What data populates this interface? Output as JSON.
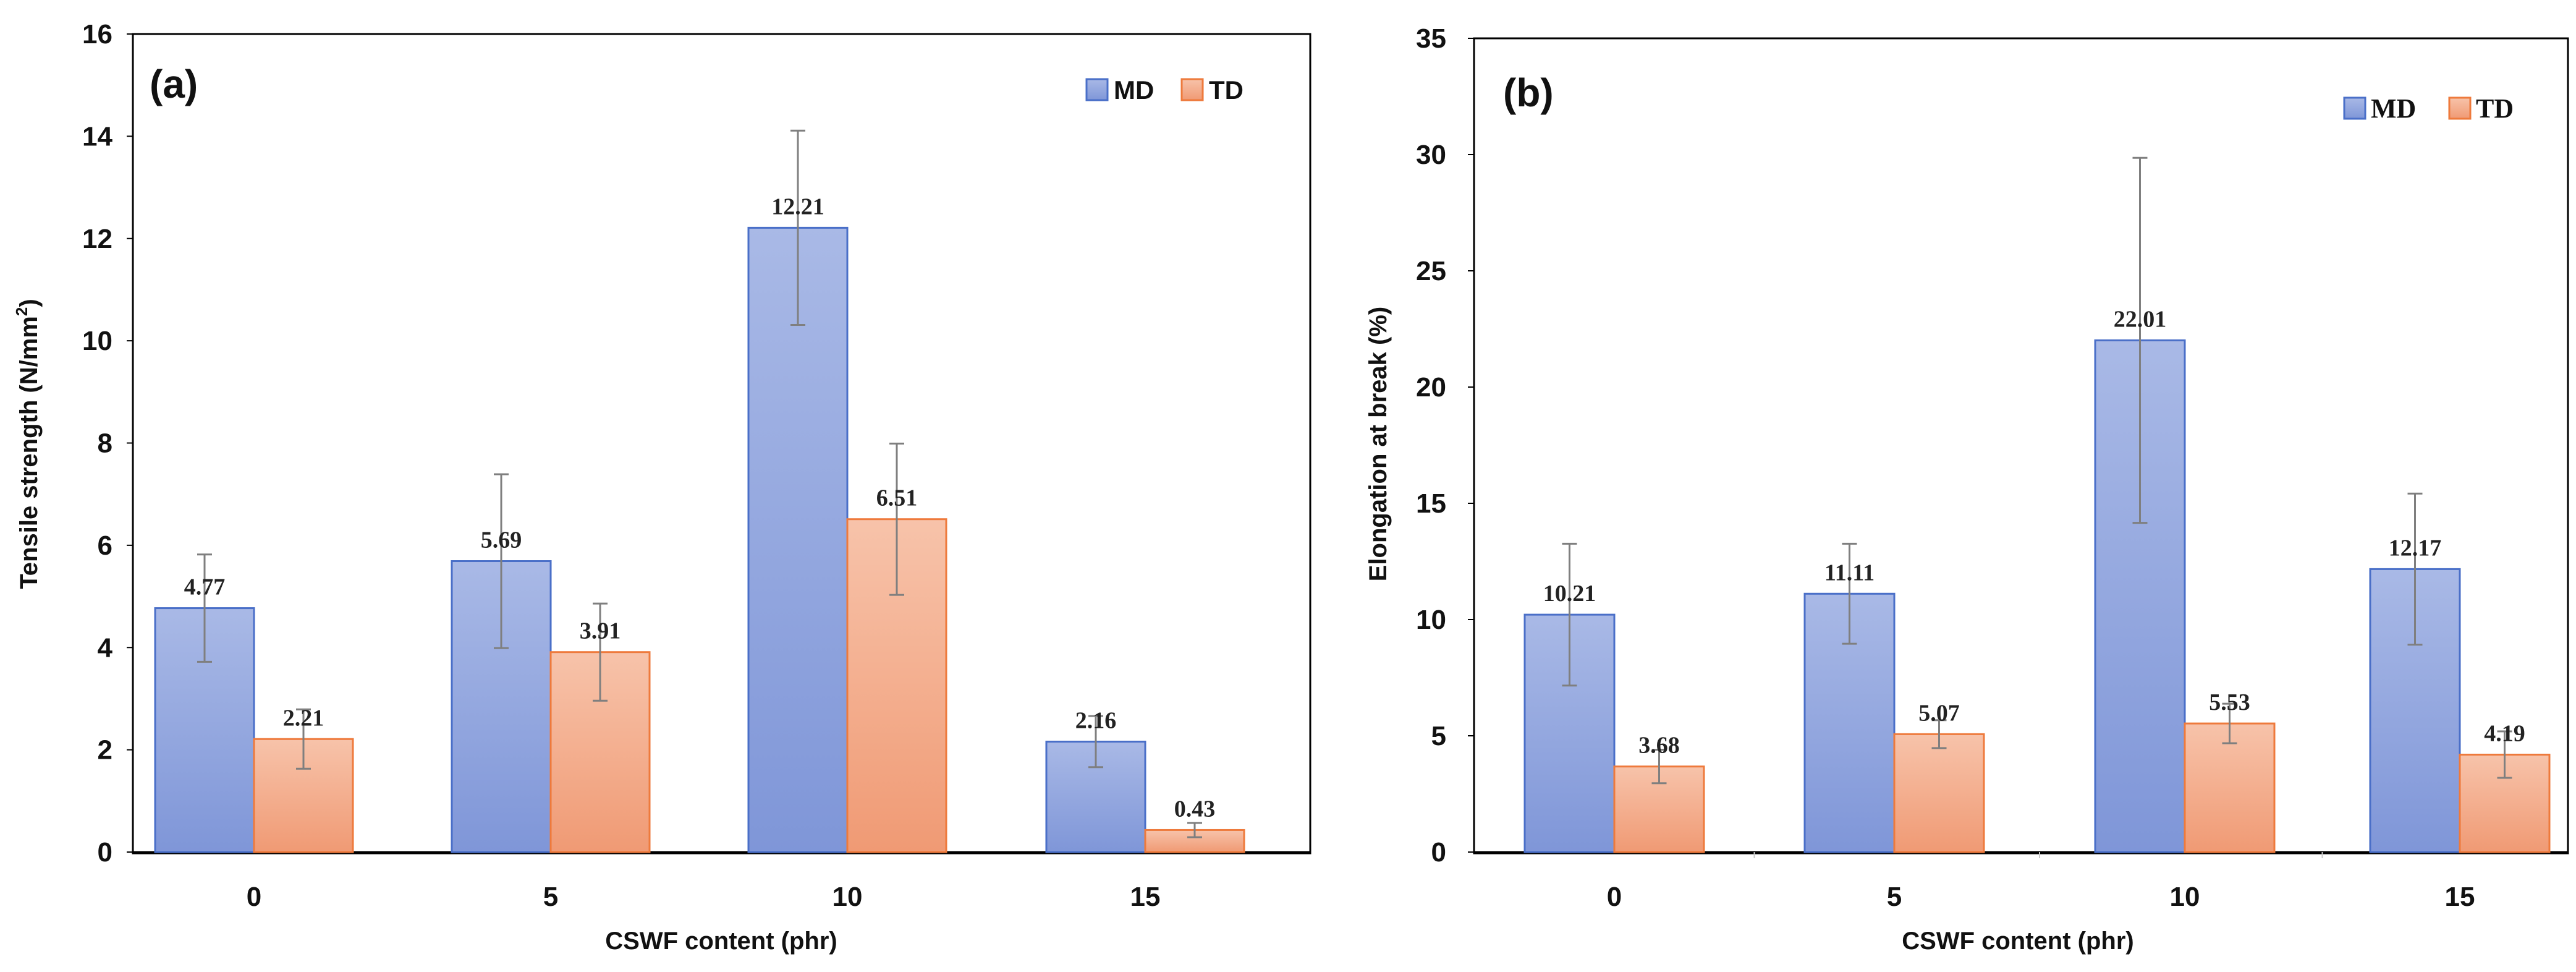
{
  "colors": {
    "md_fill_top": "#a9b9e6",
    "md_fill_bottom": "#7f96d8",
    "md_stroke": "#4a6fc8",
    "td_fill_top": "#f7c3aa",
    "td_fill_bottom": "#f09a74",
    "td_stroke": "#ee7a3c",
    "error_bar": "#7f7f7f",
    "axis": "#000000"
  },
  "chart_data": [
    {
      "type": "bar",
      "panel_label": "(a)",
      "title": "",
      "xlabel": "CSWF content (phr)",
      "ylabel": "Tensile strength (N/mm",
      "ylabel_sup": "2",
      "ylabel_end": ")",
      "categories": [
        "0",
        "5",
        "10",
        "15"
      ],
      "ylim": [
        0,
        16
      ],
      "yticks": [
        "0",
        "2",
        "4",
        "6",
        "8",
        "10",
        "12",
        "14",
        "16"
      ],
      "legend_position": "top-right",
      "series": [
        {
          "name": "MD",
          "values": [
            4.77,
            5.69,
            12.21,
            2.16
          ],
          "value_labels": [
            "4.77",
            "5.69",
            "12.21",
            "2.16"
          ],
          "error": [
            1.05,
            1.7,
            1.9,
            0.5
          ]
        },
        {
          "name": "TD",
          "values": [
            2.21,
            3.91,
            6.51,
            0.43
          ],
          "value_labels": [
            "2.21",
            "3.91",
            "6.51",
            "0.43"
          ],
          "error": [
            0.58,
            0.95,
            1.48,
            0.14
          ]
        }
      ]
    },
    {
      "type": "bar",
      "panel_label": "(b)",
      "title": "",
      "xlabel": "CSWF content (phr)",
      "ylabel": "Elongation at break (%)",
      "categories": [
        "0",
        "5",
        "10",
        "15"
      ],
      "ylim": [
        0,
        35
      ],
      "yticks": [
        "0",
        "5",
        "10",
        "15",
        "20",
        "25",
        "30",
        "35"
      ],
      "legend_position": "top-right",
      "series": [
        {
          "name": "MD",
          "values": [
            10.21,
            11.11,
            22.01,
            12.17
          ],
          "value_labels": [
            "10.21",
            "11.11",
            "22.01",
            "12.17"
          ],
          "error": [
            3.05,
            2.15,
            7.85,
            3.25
          ]
        },
        {
          "name": "TD",
          "values": [
            3.68,
            5.07,
            5.53,
            4.19
          ],
          "value_labels": [
            "3.68",
            "5.07",
            "5.53",
            "4.19"
          ],
          "error": [
            0.72,
            0.6,
            0.85,
            1.0
          ]
        }
      ]
    }
  ]
}
